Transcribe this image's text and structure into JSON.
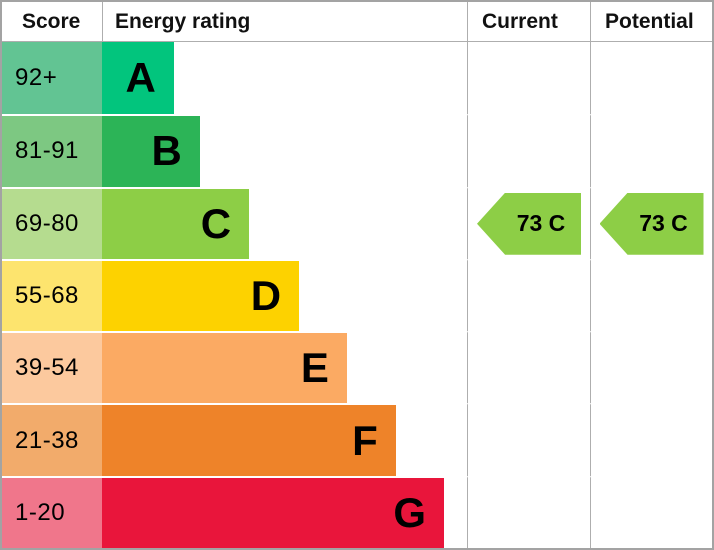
{
  "header": {
    "score": "Score",
    "energy_rating": "Energy rating",
    "current": "Current",
    "potential": "Potential"
  },
  "colors": {
    "outer_border": "#a3a3a3",
    "grid_line": "#aeaeae",
    "row_separator": "#ffffff",
    "text": "#000000"
  },
  "chart_data": {
    "type": "bar",
    "title": "Energy rating (EPC) chart",
    "categories": [
      "A",
      "B",
      "C",
      "D",
      "E",
      "F",
      "G"
    ],
    "bands": [
      {
        "letter": "A",
        "score_range": "92+",
        "bar_color": "#02c57d",
        "score_bg": "#62c493",
        "bar_width_pct": 19.7
      },
      {
        "letter": "B",
        "score_range": "81-91",
        "bar_color": "#2cb457",
        "score_bg": "#7dc882",
        "bar_width_pct": 26.8
      },
      {
        "letter": "C",
        "score_range": "69-80",
        "bar_color": "#8dce46",
        "score_bg": "#b5dc8f",
        "bar_width_pct": 40.3
      },
      {
        "letter": "D",
        "score_range": "55-68",
        "bar_color": "#fdd200",
        "score_bg": "#fde46e",
        "bar_width_pct": 54.0
      },
      {
        "letter": "E",
        "score_range": "39-54",
        "bar_color": "#fbaa63",
        "score_bg": "#fcc99e",
        "bar_width_pct": 67.1
      },
      {
        "letter": "F",
        "score_range": "21-38",
        "bar_color": "#ee8329",
        "score_bg": "#f2ab6b",
        "bar_width_pct": 80.5
      },
      {
        "letter": "G",
        "score_range": "1-20",
        "bar_color": "#e9153b",
        "score_bg": "#f0768b",
        "bar_width_pct": 93.7
      }
    ],
    "current": {
      "value": 73,
      "band": "C",
      "label": "73 C",
      "arrow_color": "#8dce46"
    },
    "potential": {
      "value": 73,
      "band": "C",
      "label": "73 C",
      "arrow_color": "#8dce46"
    }
  }
}
